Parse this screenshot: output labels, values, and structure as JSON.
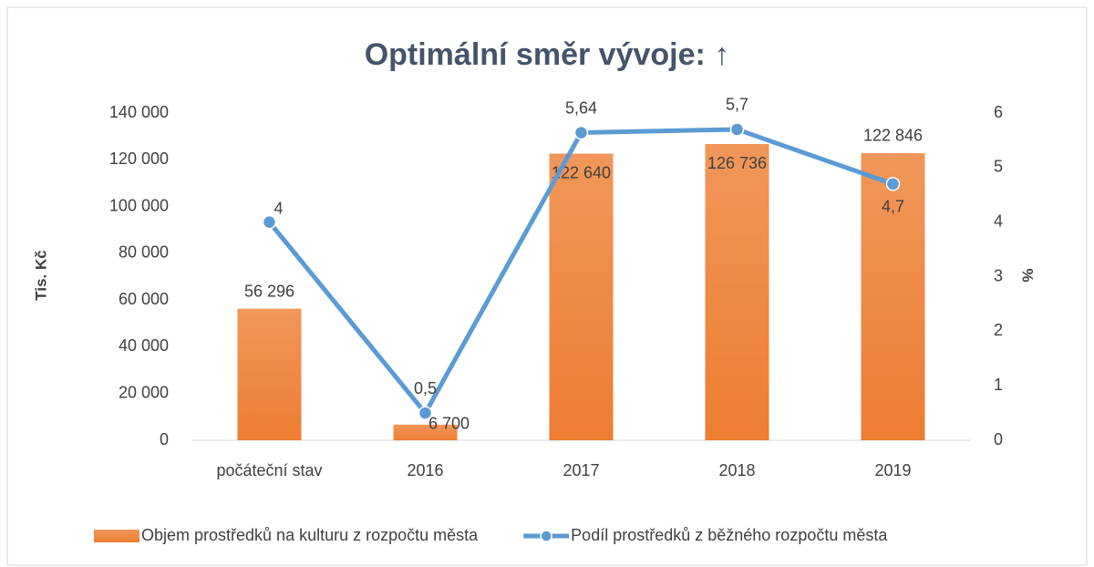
{
  "chart_data": {
    "type": "combo",
    "title": "Optimální směr vývoje: ↑",
    "y_label": "Tis. Kč",
    "y2_label": "%",
    "categories": [
      "počáteční stav",
      "2016",
      "2017",
      "2018",
      "2019"
    ],
    "series": [
      {
        "name": "Objem prostředků na kulturu z rozpočtu města",
        "type": "bar",
        "color": "#ed7d31",
        "values": [
          56296,
          6700,
          122640,
          126736,
          122846
        ],
        "value_labels": [
          "56 296",
          "6 700",
          "122 640",
          "126 736",
          "122 846"
        ]
      },
      {
        "name": "Podíl prostředků z běžného rozpočtu města",
        "type": "line",
        "axis": "y2",
        "color": "#5b9bd5",
        "values": [
          4,
          0.5,
          5.64,
          5.7,
          4.7
        ],
        "value_labels": [
          "4",
          "0,5",
          "5,64",
          "5,7",
          "4,7"
        ]
      }
    ],
    "ylim": [
      0,
      140000
    ],
    "yticks": [
      0,
      {
        "value": 20000,
        "label": "20 000"
      },
      {
        "value": 40000,
        "label": "40 000"
      },
      {
        "value": 60000,
        "label": "60 000"
      },
      {
        "value": 80000,
        "label": "80 000"
      },
      {
        "value": 100000,
        "label": "100 000"
      },
      {
        "value": 120000,
        "label": "120 000"
      },
      {
        "value": 140000,
        "label": "140 000"
      }
    ],
    "y2lim": [
      0,
      6
    ],
    "y2ticks": [
      0,
      1,
      2,
      3,
      4,
      5,
      6
    ],
    "legend": "bottom"
  }
}
